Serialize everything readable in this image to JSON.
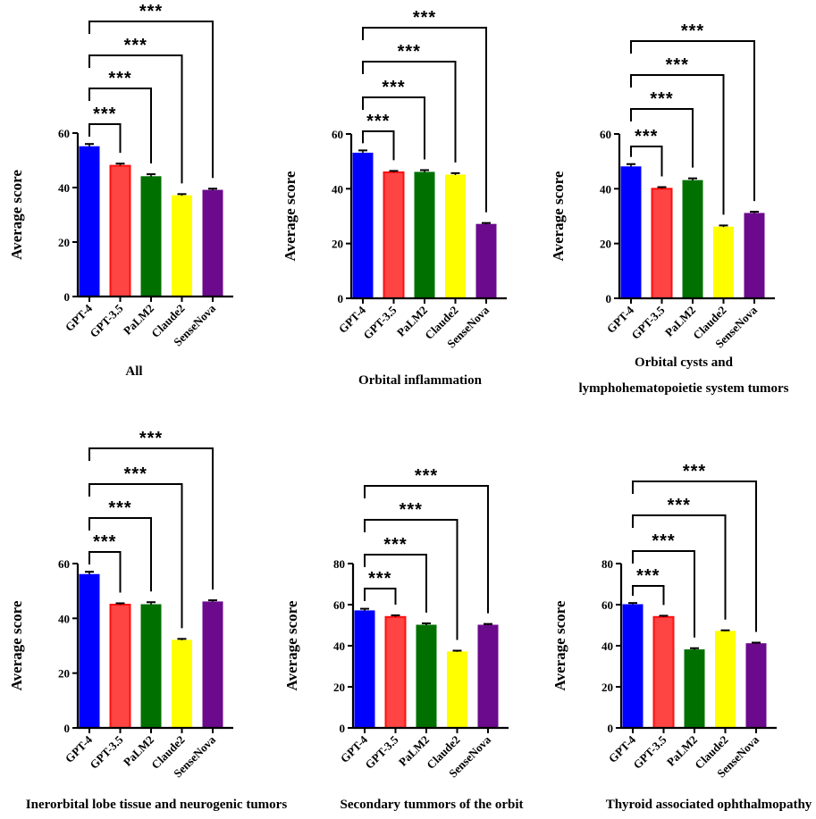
{
  "chart_data": [
    {
      "type": "bar",
      "title": [
        "All"
      ],
      "ylabel": "Average score",
      "ylim": [
        0,
        60
      ],
      "yticks": [
        0,
        20,
        40,
        60
      ],
      "categories": [
        "GPT-4",
        "GPT-3.5",
        "PaLM2",
        "Claude2",
        "SenseNova"
      ],
      "values": [
        55,
        48,
        44,
        37,
        39
      ],
      "errors": [
        1,
        0.8,
        0.9,
        0.6,
        0.6
      ],
      "comparisons": [
        {
          "from": "GPT-4",
          "to": "GPT-3.5",
          "label": "***"
        },
        {
          "from": "GPT-4",
          "to": "PaLM2",
          "label": "***"
        },
        {
          "from": "GPT-4",
          "to": "Claude2",
          "label": "***"
        },
        {
          "from": "GPT-4",
          "to": "SenseNova",
          "label": "***"
        }
      ]
    },
    {
      "type": "bar",
      "title": [
        "Orbital inflammation"
      ],
      "ylabel": "Average score",
      "ylim": [
        0,
        60
      ],
      "yticks": [
        0,
        20,
        40,
        60
      ],
      "categories": [
        "GPT-4",
        "GPT-3.5",
        "PaLM2",
        "Claude2",
        "SenseNova"
      ],
      "values": [
        53,
        46,
        46,
        45,
        27
      ],
      "errors": [
        1,
        0.5,
        0.8,
        0.7,
        0.5
      ],
      "comparisons": [
        {
          "from": "GPT-4",
          "to": "GPT-3.5",
          "label": "***"
        },
        {
          "from": "GPT-4",
          "to": "PaLM2",
          "label": "***"
        },
        {
          "from": "GPT-4",
          "to": "Claude2",
          "label": "***"
        },
        {
          "from": "GPT-4",
          "to": "SenseNova",
          "label": "***"
        }
      ]
    },
    {
      "type": "bar",
      "title": [
        "Orbital cysts and",
        "lymphohematopoietie system tumors"
      ],
      "ylabel": "Average score",
      "ylim": [
        0,
        60
      ],
      "yticks": [
        0,
        20,
        40,
        60
      ],
      "categories": [
        "GPT-4",
        "GPT-3.5",
        "PaLM2",
        "Claude2",
        "SenseNova"
      ],
      "values": [
        48,
        40,
        43,
        26,
        31
      ],
      "errors": [
        1,
        0.6,
        0.8,
        0.6,
        0.6
      ],
      "comparisons": [
        {
          "from": "GPT-4",
          "to": "GPT-3.5",
          "label": "***"
        },
        {
          "from": "GPT-4",
          "to": "PaLM2",
          "label": "***"
        },
        {
          "from": "GPT-4",
          "to": "Claude2",
          "label": "***"
        },
        {
          "from": "GPT-4",
          "to": "SenseNova",
          "label": "***"
        }
      ]
    },
    {
      "type": "bar",
      "title": [
        "Inerorbital lobe tissue and neurogenic tumors"
      ],
      "ylabel": "Average score",
      "ylim": [
        0,
        60
      ],
      "yticks": [
        0,
        20,
        40,
        60
      ],
      "categories": [
        "GPT-4",
        "GPT-3.5",
        "PaLM2",
        "Claude2",
        "SenseNova"
      ],
      "values": [
        56,
        45,
        45,
        32,
        46
      ],
      "errors": [
        1,
        0.5,
        0.9,
        0.5,
        0.6
      ],
      "comparisons": [
        {
          "from": "GPT-4",
          "to": "GPT-3.5",
          "label": "***"
        },
        {
          "from": "GPT-4",
          "to": "PaLM2",
          "label": "***"
        },
        {
          "from": "GPT-4",
          "to": "Claude2",
          "label": "***"
        },
        {
          "from": "GPT-4",
          "to": "SenseNova",
          "label": "***"
        }
      ]
    },
    {
      "type": "bar",
      "title": [
        "Secondary tummors of the orbit"
      ],
      "ylabel": "Average score",
      "ylim": [
        0,
        80
      ],
      "yticks": [
        0,
        20,
        40,
        60,
        80
      ],
      "categories": [
        "GPT-4",
        "GPT-3.5",
        "PaLM2",
        "Claude2",
        "SenseNova"
      ],
      "values": [
        57,
        54,
        50,
        37,
        50
      ],
      "errors": [
        1,
        0.8,
        0.9,
        0.6,
        0.6
      ],
      "comparisons": [
        {
          "from": "GPT-4",
          "to": "GPT-3.5",
          "label": "***"
        },
        {
          "from": "GPT-4",
          "to": "PaLM2",
          "label": "***"
        },
        {
          "from": "GPT-4",
          "to": "Claude2",
          "label": "***"
        },
        {
          "from": "GPT-4",
          "to": "SenseNova",
          "label": "***"
        }
      ]
    },
    {
      "type": "bar",
      "title": [
        "Thyroid associated ophthalmopathy"
      ],
      "ylabel": "Average score",
      "ylim": [
        0,
        80
      ],
      "yticks": [
        0,
        20,
        40,
        60,
        80
      ],
      "categories": [
        "GPT-4",
        "GPT-3.5",
        "PaLM2",
        "Claude2",
        "SenseNova"
      ],
      "values": [
        60,
        54,
        38,
        47,
        41
      ],
      "errors": [
        0.8,
        0.6,
        0.8,
        0.5,
        0.5
      ],
      "comparisons": [
        {
          "from": "GPT-4",
          "to": "GPT-3.5",
          "label": "***"
        },
        {
          "from": "GPT-4",
          "to": "PaLM2",
          "label": "***"
        },
        {
          "from": "GPT-4",
          "to": "Claude2",
          "label": "***"
        },
        {
          "from": "GPT-4",
          "to": "SenseNova",
          "label": "***"
        }
      ]
    }
  ],
  "colors": {
    "fill": [
      "#0000ff",
      "#ff4444",
      "#007000",
      "#ffff00",
      "#6b0a8c"
    ],
    "stroke": [
      "#0000ff",
      "#ff1010",
      "#007000",
      "#ffff00",
      "#6b0a8c"
    ]
  }
}
